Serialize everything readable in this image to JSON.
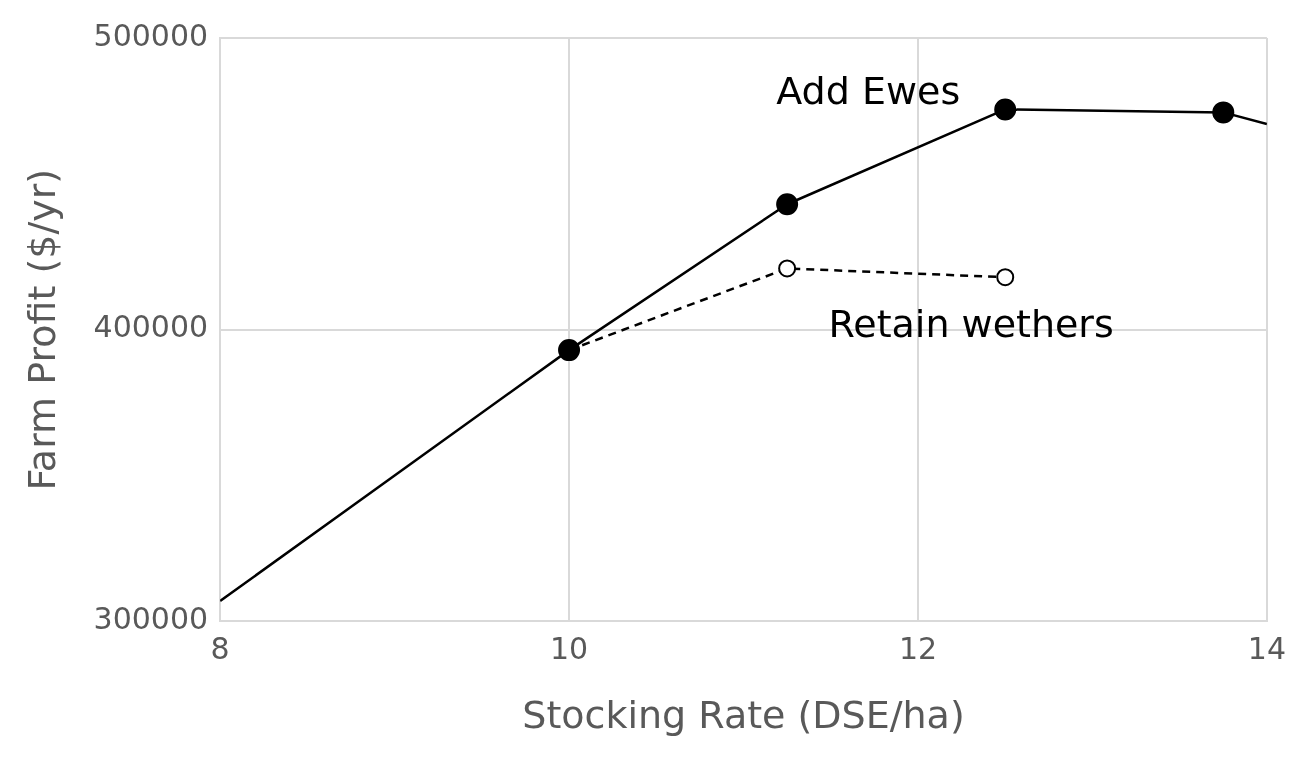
{
  "chart_data": {
    "type": "line",
    "xlabel": "Stocking Rate (DSE/ha)",
    "ylabel": "Farm Profit ($/yr)",
    "xlim": [
      8,
      14
    ],
    "xticks": [
      8,
      10,
      12,
      14
    ],
    "ylim": [
      300000,
      500000
    ],
    "yticks": [
      300000,
      400000,
      500000
    ],
    "grid": true,
    "legend": false,
    "series": [
      {
        "name": "Add Ewes",
        "color": "#000000",
        "x": [
          8,
          10,
          11.25,
          12.5,
          13.75,
          14
        ],
        "values": [
          307000,
          393000,
          443000,
          475500,
          474500,
          470500
        ],
        "marker": "circle",
        "line_style": "solid"
      },
      {
        "name": "Retain wethers",
        "color": "#000000",
        "x": [
          10,
          11.25,
          12.5
        ],
        "values": [
          393000,
          421000,
          418000
        ],
        "marker": "circle",
        "line_style": "dashed"
      }
    ]
  }
}
